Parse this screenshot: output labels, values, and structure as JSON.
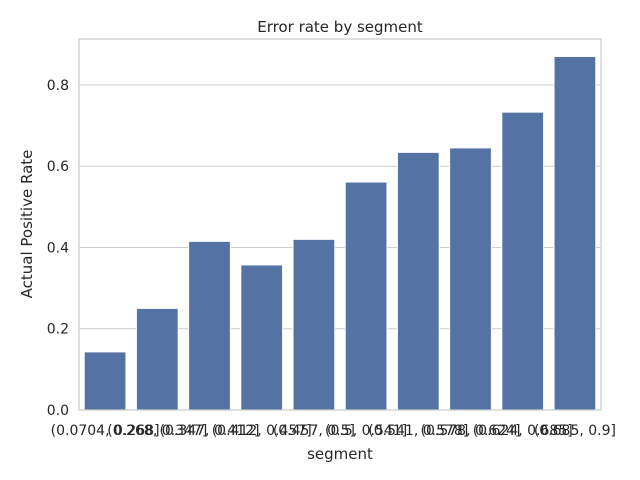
{
  "chart_data": {
    "type": "bar",
    "title": "Error rate by segment",
    "xlabel": "segment",
    "ylabel": "Actual Positive Rate",
    "categories": [
      "(0.0704, 0.268]",
      "(0.268, 0.347]",
      "(0.347, 0.412]",
      "(0.412, 0.457]",
      "(0.457, 0.5]",
      "(0.5, 0.541]",
      "(0.541, 0.578]",
      "(0.578, 0.624]",
      "(0.624, 0.685]",
      "(0.685, 0.9]"
    ],
    "values": [
      0.143,
      0.25,
      0.415,
      0.357,
      0.42,
      0.561,
      0.634,
      0.645,
      0.733,
      0.87
    ],
    "ylim": [
      0,
      0.913
    ],
    "yticks": [
      0.0,
      0.2,
      0.4,
      0.6,
      0.8
    ],
    "ytick_labels": [
      "0.0",
      "0.2",
      "0.4",
      "0.6",
      "0.8"
    ],
    "grid": "horizontal",
    "bar_color": "#5572a4",
    "grid_color": "#cccccc",
    "frame_color": "#cccccc"
  }
}
